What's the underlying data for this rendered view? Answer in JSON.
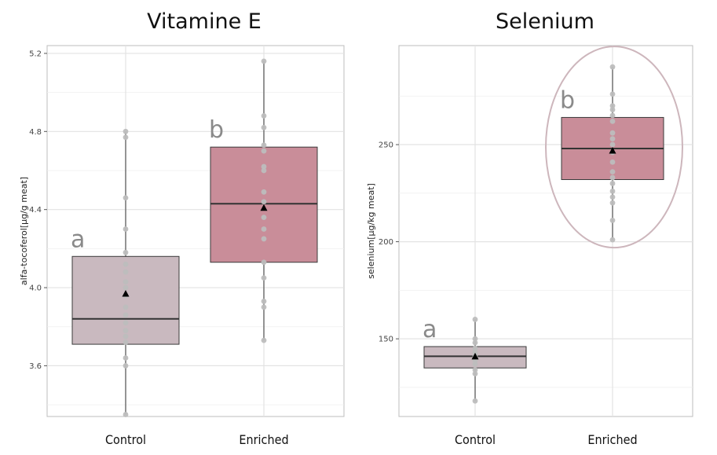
{
  "colors": {
    "control_fill": "#c9b9bf",
    "enriched_fill": "#c98d99",
    "point": "#bdbdbd",
    "whisker": "#7a7a7a",
    "median": "#333333",
    "mean": "#000000",
    "grid": "#e3e3e3",
    "ellipse": "#cdb6bc",
    "letter": "#8a8a8a"
  },
  "chart_data": [
    {
      "type": "box",
      "title": "Vitamine E",
      "ylabel": "alfa-tocoferol[µg/g meat]",
      "xlabel": "",
      "categories": [
        "Control",
        "Enriched"
      ],
      "ylim": [
        3.34,
        5.24
      ],
      "yticks": [
        3.6,
        4.0,
        4.4,
        4.8,
        5.2
      ],
      "ytick_labels": [
        "3.6",
        "4.0",
        "4.4",
        "4.8",
        "5.2"
      ],
      "grid": true,
      "highlight_ellipse": false,
      "boxes": [
        {
          "category": "Control",
          "min": 3.35,
          "q1": 3.71,
          "median": 3.84,
          "q3": 4.16,
          "max": 4.8,
          "mean": 3.97,
          "letter": "a",
          "points": [
            3.35,
            3.6,
            3.64,
            3.72,
            3.75,
            3.78,
            3.82,
            3.86,
            3.9,
            3.96,
            4.0,
            4.03,
            4.08,
            4.12,
            4.18,
            4.3,
            4.46,
            4.77,
            4.8
          ]
        },
        {
          "category": "Enriched",
          "min": 3.73,
          "q1": 4.13,
          "median": 4.43,
          "q3": 4.72,
          "max": 5.16,
          "mean": 4.41,
          "letter": "b",
          "points": [
            3.73,
            3.9,
            3.93,
            4.05,
            4.13,
            4.25,
            4.3,
            4.36,
            4.44,
            4.49,
            4.6,
            4.62,
            4.7,
            4.73,
            4.82,
            4.88,
            5.16
          ]
        }
      ]
    },
    {
      "type": "box",
      "title": "Selenium",
      "ylabel": "selenium[µg/kg meat]",
      "xlabel": "",
      "categories": [
        "Control",
        "Enriched"
      ],
      "ylim": [
        110,
        301
      ],
      "yticks": [
        150,
        200,
        250
      ],
      "ytick_labels": [
        "150",
        "200",
        "250"
      ],
      "grid": true,
      "highlight_ellipse": true,
      "boxes": [
        {
          "category": "Control",
          "min": 118,
          "q1": 135,
          "median": 141,
          "q3": 146,
          "max": 160,
          "mean": 141,
          "letter": "a",
          "points": [
            118,
            132,
            134,
            137,
            139,
            141,
            143,
            145,
            148,
            150,
            160
          ]
        },
        {
          "category": "Enriched",
          "min": 201,
          "q1": 232,
          "median": 248,
          "q3": 264,
          "max": 290,
          "mean": 247,
          "letter": "b",
          "points": [
            201,
            211,
            220,
            223,
            226,
            230,
            233,
            236,
            241,
            246,
            250,
            253,
            256,
            262,
            265,
            268,
            270,
            276,
            290
          ]
        }
      ]
    }
  ]
}
